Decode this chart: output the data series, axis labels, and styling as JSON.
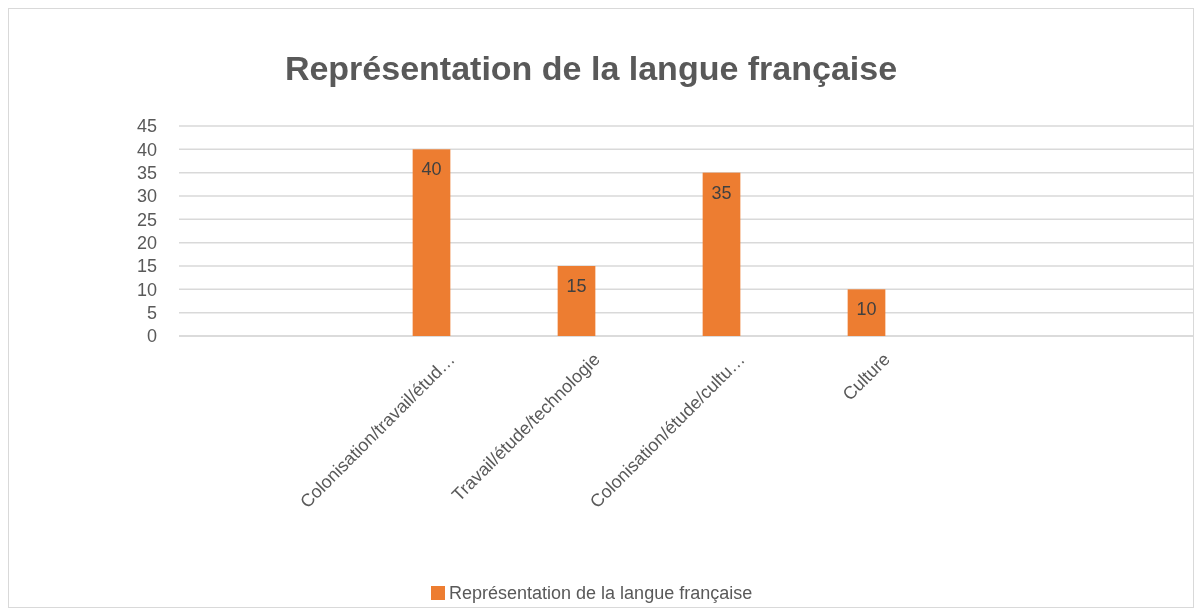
{
  "chart_data": {
    "type": "bar",
    "title": "Représentation de la langue française",
    "categories": [
      "Colonisation/travail/étud…",
      "Travail/étude/technologie",
      "Colonisation/étude/cultu…",
      "Culture"
    ],
    "series": [
      {
        "name": "Représentation de la langue française",
        "color": "#ed7d31",
        "values": [
          40,
          15,
          35,
          10
        ]
      }
    ],
    "ylim": [
      0,
      45
    ],
    "yticks": [
      0,
      5,
      10,
      15,
      20,
      25,
      30,
      35,
      40,
      45
    ],
    "grid": "y",
    "legend": "bottom",
    "data_labels": true
  }
}
